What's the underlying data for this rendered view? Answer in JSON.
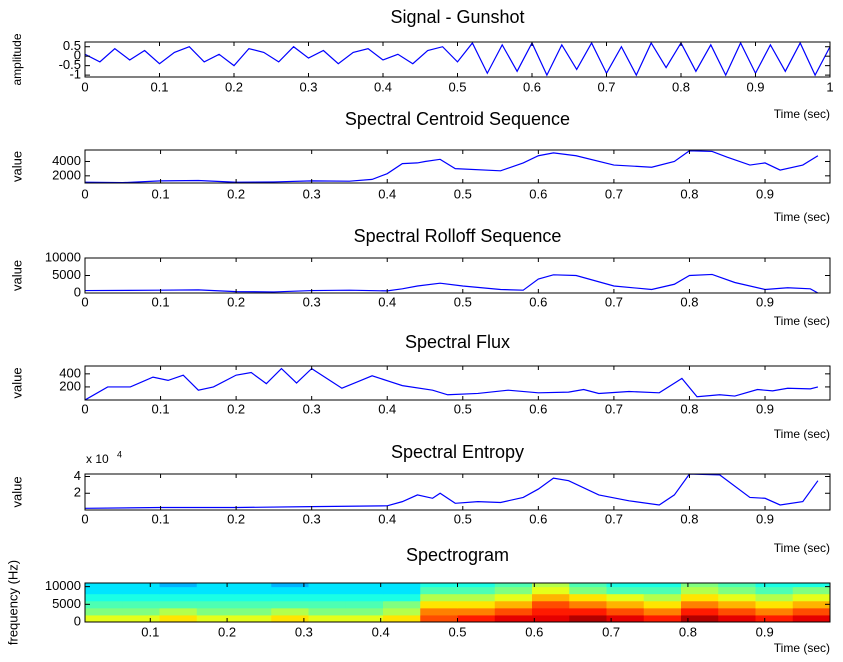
{
  "chart_data": [
    {
      "type": "line",
      "title": "Signal - Gunshot",
      "ylabel": "amplitude",
      "xlabel": "Time (sec)",
      "color": "#0000ff",
      "x": [
        0,
        0.02,
        0.04,
        0.06,
        0.08,
        0.1,
        0.12,
        0.14,
        0.16,
        0.18,
        0.2,
        0.22,
        0.24,
        0.26,
        0.28,
        0.3,
        0.32,
        0.34,
        0.36,
        0.38,
        0.4,
        0.42,
        0.44,
        0.46,
        0.48,
        0.5,
        0.52,
        0.54,
        0.56,
        0.58,
        0.6,
        0.62,
        0.64,
        0.66,
        0.68,
        0.7,
        0.72,
        0.74,
        0.76,
        0.78,
        0.8,
        0.82,
        0.84,
        0.86,
        0.88,
        0.9,
        0.92,
        0.94,
        0.96,
        0.98,
        1
      ],
      "values": [
        0.1,
        -0.3,
        0.4,
        -0.2,
        0.3,
        -0.4,
        0.2,
        0.5,
        -0.3,
        0.1,
        -0.5,
        0.4,
        0.2,
        -0.3,
        0.5,
        -0.1,
        0.3,
        -0.4,
        0.2,
        0.4,
        -0.2,
        0.1,
        -0.4,
        0.3,
        0.5,
        -0.3,
        0.7,
        -0.9,
        0.6,
        -0.8,
        0.7,
        -1,
        0.6,
        -0.7,
        0.7,
        -0.9,
        0.5,
        -1,
        0.7,
        -0.6,
        0.7,
        -0.8,
        0.6,
        -1,
        0.7,
        -0.9,
        0.6,
        -0.8,
        0.7,
        -1,
        0.5
      ],
      "xlim": [
        0,
        1
      ],
      "xticks": [
        0,
        0.1,
        0.2,
        0.3,
        0.4,
        0.5,
        0.6,
        0.7,
        0.8,
        0.9,
        1
      ],
      "ylim": [
        -1.1,
        0.75
      ],
      "yticks": [
        -1,
        -0.5,
        0,
        0.5
      ]
    },
    {
      "type": "line",
      "title": "Spectral Centroid Sequence",
      "ylabel": "value",
      "xlabel": "Time (sec)",
      "color": "#0000ff",
      "x": [
        0,
        0.05,
        0.1,
        0.15,
        0.2,
        0.25,
        0.3,
        0.35,
        0.38,
        0.4,
        0.42,
        0.44,
        0.45,
        0.47,
        0.49,
        0.55,
        0.58,
        0.6,
        0.62,
        0.65,
        0.7,
        0.75,
        0.78,
        0.8,
        0.83,
        0.85,
        0.88,
        0.9,
        0.92,
        0.95,
        0.97
      ],
      "values": [
        1100,
        1050,
        1300,
        1350,
        1100,
        1150,
        1300,
        1250,
        1500,
        2300,
        3700,
        3800,
        4000,
        4300,
        3000,
        2700,
        3800,
        4800,
        5200,
        4800,
        3500,
        3200,
        4000,
        5500,
        5400,
        4600,
        3500,
        3800,
        2800,
        3500,
        4800
      ],
      "xlim": [
        0,
        0.986
      ],
      "xticks": [
        0,
        0.1,
        0.2,
        0.3,
        0.4,
        0.5,
        0.6,
        0.7,
        0.8,
        0.9
      ],
      "ylim": [
        1000,
        5600
      ],
      "yticks": [
        2000,
        4000
      ]
    },
    {
      "type": "line",
      "title": "Spectral Rolloff Sequence",
      "ylabel": "value",
      "xlabel": "Time (sec)",
      "color": "#0000ff",
      "x": [
        0,
        0.1,
        0.15,
        0.2,
        0.25,
        0.3,
        0.35,
        0.4,
        0.42,
        0.44,
        0.47,
        0.5,
        0.55,
        0.58,
        0.6,
        0.62,
        0.65,
        0.7,
        0.75,
        0.78,
        0.8,
        0.83,
        0.86,
        0.9,
        0.93,
        0.96,
        0.97
      ],
      "values": [
        700,
        800,
        900,
        400,
        300,
        700,
        800,
        600,
        1200,
        2000,
        2800,
        2000,
        1000,
        800,
        4000,
        5200,
        5000,
        2000,
        1000,
        2500,
        5000,
        5300,
        3000,
        1000,
        1500,
        1200,
        0
      ],
      "xlim": [
        0,
        0.986
      ],
      "xticks": [
        0,
        0.1,
        0.2,
        0.3,
        0.4,
        0.5,
        0.6,
        0.7,
        0.8,
        0.9
      ],
      "ylim": [
        0,
        10000
      ],
      "yticks": [
        0,
        5000,
        10000
      ]
    },
    {
      "type": "line",
      "title": "Spectral Flux",
      "ylabel": "value",
      "xlabel": "Time (sec)",
      "color": "#0000ff",
      "x": [
        0,
        0.03,
        0.06,
        0.09,
        0.11,
        0.13,
        0.15,
        0.17,
        0.2,
        0.22,
        0.24,
        0.26,
        0.28,
        0.3,
        0.34,
        0.38,
        0.42,
        0.46,
        0.48,
        0.52,
        0.56,
        0.6,
        0.64,
        0.66,
        0.68,
        0.72,
        0.76,
        0.79,
        0.81,
        0.84,
        0.86,
        0.89,
        0.91,
        0.93,
        0.96,
        0.97
      ],
      "values": [
        0,
        200,
        200,
        350,
        300,
        380,
        150,
        200,
        380,
        420,
        250,
        480,
        260,
        480,
        180,
        370,
        220,
        150,
        80,
        100,
        150,
        110,
        120,
        160,
        100,
        130,
        110,
        330,
        50,
        80,
        60,
        160,
        140,
        180,
        170,
        200
      ],
      "xlim": [
        0,
        0.986
      ],
      "xticks": [
        0,
        0.1,
        0.2,
        0.3,
        0.4,
        0.5,
        0.6,
        0.7,
        0.8,
        0.9
      ],
      "ylim": [
        0,
        520
      ],
      "yticks": [
        200,
        400
      ]
    },
    {
      "type": "line",
      "title": "Spectral Entropy",
      "ylabel": "value",
      "xlabel": "Time (sec)",
      "color": "#0000ff",
      "y_multiplier": "x 10",
      "y_multiplier_exponent": "4",
      "x": [
        0,
        0.1,
        0.2,
        0.3,
        0.4,
        0.42,
        0.44,
        0.46,
        0.47,
        0.49,
        0.52,
        0.55,
        0.58,
        0.6,
        0.62,
        0.64,
        0.68,
        0.72,
        0.76,
        0.78,
        0.8,
        0.84,
        0.88,
        0.9,
        0.92,
        0.95,
        0.97
      ],
      "values": [
        0.2,
        0.3,
        0.3,
        0.4,
        0.5,
        1.0,
        1.8,
        1.4,
        2.0,
        0.8,
        1.0,
        0.9,
        1.5,
        2.5,
        3.8,
        3.5,
        1.8,
        1.1,
        0.6,
        1.8,
        4.3,
        4.2,
        1.5,
        1.4,
        0.6,
        1.0,
        3.5
      ],
      "xlim": [
        0,
        0.986
      ],
      "xticks": [
        0,
        0.1,
        0.2,
        0.3,
        0.4,
        0.5,
        0.6,
        0.7,
        0.8,
        0.9
      ],
      "ylim": [
        0,
        4.3
      ],
      "yticks": [
        2,
        4
      ]
    },
    {
      "type": "heatmap",
      "title": "Spectrogram",
      "ylabel": "frequency (Hz)",
      "xlabel": "Time (sec)",
      "colormap": "jet",
      "clim": [
        0,
        10
      ],
      "xbins": [
        0.015,
        0.0635,
        0.112,
        0.1605,
        0.209,
        0.2575,
        0.306,
        0.3545,
        0.403,
        0.4515,
        0.5,
        0.5485,
        0.597,
        0.6455,
        0.694,
        0.7425,
        0.791,
        0.8395,
        0.888,
        0.9365,
        0.985
      ],
      "ybins": [
        0,
        2000,
        4000,
        6000,
        8000,
        10000,
        11025
      ],
      "values": [
        [
          6,
          6,
          6.5,
          6,
          6,
          6.5,
          6,
          6,
          6.5,
          8,
          8.5,
          9,
          9,
          9.5,
          9,
          8.5,
          9.5,
          9,
          8.5,
          9
        ],
        [
          5,
          5,
          5.5,
          5,
          5,
          5.5,
          5,
          5,
          5.5,
          7.5,
          7.5,
          8,
          8.5,
          8.5,
          8,
          7.5,
          8.5,
          8,
          7.5,
          8
        ],
        [
          4.5,
          4.5,
          4.5,
          4.5,
          4.5,
          4.5,
          4.5,
          4.5,
          5,
          6.5,
          6.5,
          7,
          8,
          7.5,
          7,
          6.5,
          7.5,
          7,
          6.5,
          7
        ],
        [
          4,
          4,
          4,
          4,
          4,
          4,
          4,
          4,
          4,
          5.5,
          5.5,
          6,
          7,
          6.5,
          6,
          5.5,
          6.5,
          6,
          5.5,
          6
        ],
        [
          3.5,
          3.5,
          3.5,
          3.5,
          3.5,
          3.5,
          3.5,
          3.5,
          3.5,
          4.5,
          4.5,
          5,
          6,
          5,
          4.5,
          4.5,
          5.5,
          5,
          4.5,
          5
        ],
        [
          3.5,
          3.5,
          3,
          3.5,
          3.5,
          3,
          3.5,
          3.5,
          3.5,
          4,
          4,
          4.5,
          5.5,
          4.5,
          4,
          4,
          5,
          4.5,
          4,
          4
        ]
      ],
      "xlim": [
        0.015,
        0.985
      ],
      "xticks": [
        0.1,
        0.2,
        0.3,
        0.4,
        0.5,
        0.6,
        0.7,
        0.8,
        0.9
      ],
      "ylim": [
        0,
        11025
      ],
      "yticks": [
        0,
        5000,
        10000
      ]
    }
  ]
}
